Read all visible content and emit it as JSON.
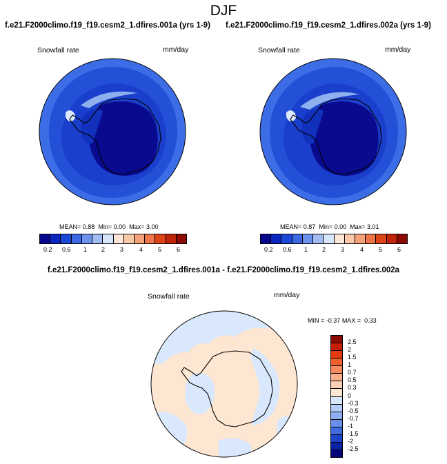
{
  "figure": {
    "season": "DJF",
    "diff_title": "f.e21.F2000climo.f19_f19.cesm2_1.dfires.001a - f.e21.F2000climo.f19_f19.cesm2_1.dfires.002a"
  },
  "panels": [
    {
      "title": "f.e21.F2000climo.f19_f19.cesm2_1.dfires.001a (yrs 1-9)",
      "variable": "Snowfall rate",
      "units": "mm/day",
      "stats": {
        "mean_label": "MEAN=",
        "mean": "0.88",
        "min_label": "Min=",
        "min": "0.00",
        "max_label": "Max=",
        "max": "3.00"
      }
    },
    {
      "title": "f.e21.F2000climo.f19_f19.cesm2_1.dfires.002a (yrs 1-9)",
      "variable": "Snowfall rate",
      "units": "mm/day",
      "stats": {
        "mean_label": "MEAN=",
        "mean": "0.87",
        "min_label": "Min=",
        "min": "0.00",
        "max_label": "Max=",
        "max": "3.01"
      }
    }
  ],
  "diff_panel": {
    "variable": "Snowfall rate",
    "units": "mm/day",
    "stats": {
      "min_label": "MIN =",
      "min": "-0.37",
      "max_label": "MAX =",
      "max": "0.33"
    }
  },
  "colorbar_abs": {
    "levels": [
      "0.2",
      "0.6",
      "1",
      "2",
      "3",
      "4",
      "5",
      "6"
    ],
    "colors": [
      "#08088c",
      "#0a28c0",
      "#1c48d8",
      "#3c6ae4",
      "#6c92ec",
      "#a2bcf3",
      "#d8e6fb",
      "#fbe6d8",
      "#f8c8a8",
      "#f4a27a",
      "#ee7448",
      "#dc4418",
      "#c02408",
      "#8c0a04"
    ]
  },
  "colorbar_diff": {
    "levels": [
      "2.5",
      "2",
      "1.5",
      "1",
      "0.7",
      "0.5",
      "0.3",
      "0",
      "-0.3",
      "-0.5",
      "-0.7",
      "-1",
      "-1.5",
      "-2",
      "-2.5"
    ],
    "colors": [
      "#8c0a04",
      "#c81e08",
      "#e43a10",
      "#f05e2c",
      "#f58a5c",
      "#f8ae88",
      "#fbd0b4",
      "#fde6d2",
      "#d8e6fb",
      "#b4cdf7",
      "#8eb0f2",
      "#6890ea",
      "#3e6ce0",
      "#1c44cc",
      "#0a22a8",
      "#06067c"
    ]
  },
  "colors": {
    "ocean_light": "#3d6de6",
    "ocean_mid": "#2450d8",
    "ocean_dark": "#1130bc",
    "antarctic_deep": "#0a0a8e",
    "diff_warm": "#fde6d2",
    "diff_cool": "#d9e8fc"
  }
}
